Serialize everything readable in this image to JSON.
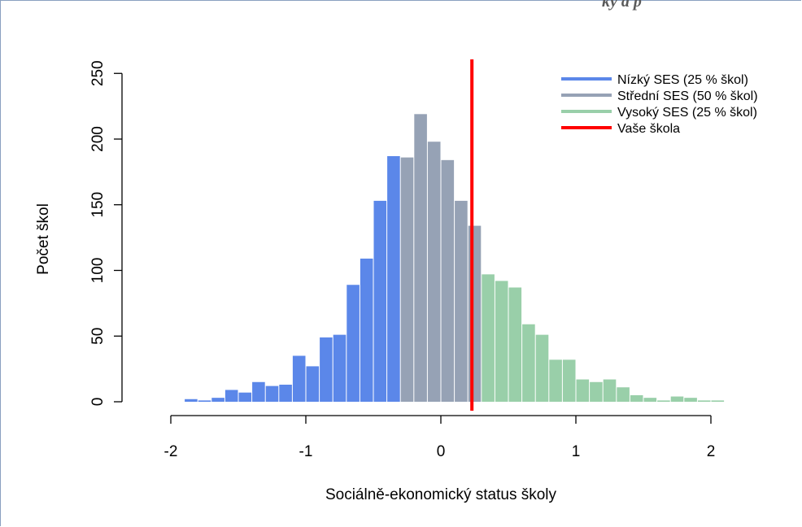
{
  "top_clip_text": "ky a p",
  "chart_data": {
    "type": "bar",
    "title": "",
    "xlabel": "Sociálně-ekonomický status školy",
    "ylabel": "Počet škol",
    "xlim": [
      -2,
      2
    ],
    "ylim": [
      0,
      250
    ],
    "x_ticks": [
      -2,
      -1,
      0,
      1,
      2
    ],
    "x_tick_labels": [
      "-2",
      "-1",
      "0",
      "1",
      "2"
    ],
    "y_ticks": [
      0,
      50,
      100,
      150,
      200,
      250
    ],
    "y_tick_labels": [
      "0",
      "50",
      "100",
      "150",
      "200",
      "250"
    ],
    "bin_width": 0.1,
    "bins": [
      {
        "x0": -1.9,
        "count": 2,
        "group": "low"
      },
      {
        "x0": -1.8,
        "count": 1,
        "group": "low"
      },
      {
        "x0": -1.7,
        "count": 3,
        "group": "low"
      },
      {
        "x0": -1.6,
        "count": 9,
        "group": "low"
      },
      {
        "x0": -1.5,
        "count": 7,
        "group": "low"
      },
      {
        "x0": -1.4,
        "count": 15,
        "group": "low"
      },
      {
        "x0": -1.3,
        "count": 12,
        "group": "low"
      },
      {
        "x0": -1.2,
        "count": 13,
        "group": "low"
      },
      {
        "x0": -1.1,
        "count": 35,
        "group": "low"
      },
      {
        "x0": -1.0,
        "count": 27,
        "group": "low"
      },
      {
        "x0": -0.9,
        "count": 49,
        "group": "low"
      },
      {
        "x0": -0.8,
        "count": 51,
        "group": "low"
      },
      {
        "x0": -0.7,
        "count": 89,
        "group": "low"
      },
      {
        "x0": -0.6,
        "count": 109,
        "group": "low"
      },
      {
        "x0": -0.5,
        "count": 153,
        "group": "low"
      },
      {
        "x0": -0.4,
        "count": 187,
        "group": "low"
      },
      {
        "x0": -0.3,
        "count": 186,
        "group": "mid"
      },
      {
        "x0": -0.2,
        "count": 219,
        "group": "mid"
      },
      {
        "x0": -0.1,
        "count": 198,
        "group": "mid"
      },
      {
        "x0": 0.0,
        "count": 184,
        "group": "mid"
      },
      {
        "x0": 0.1,
        "count": 153,
        "group": "mid"
      },
      {
        "x0": 0.2,
        "count": 134,
        "group": "mid"
      },
      {
        "x0": 0.3,
        "count": 97,
        "group": "high"
      },
      {
        "x0": 0.4,
        "count": 92,
        "group": "high"
      },
      {
        "x0": 0.5,
        "count": 87,
        "group": "high"
      },
      {
        "x0": 0.6,
        "count": 59,
        "group": "high"
      },
      {
        "x0": 0.7,
        "count": 51,
        "group": "high"
      },
      {
        "x0": 0.8,
        "count": 32,
        "group": "high"
      },
      {
        "x0": 0.9,
        "count": 32,
        "group": "high"
      },
      {
        "x0": 1.0,
        "count": 17,
        "group": "high"
      },
      {
        "x0": 1.1,
        "count": 15,
        "group": "high"
      },
      {
        "x0": 1.2,
        "count": 17,
        "group": "high"
      },
      {
        "x0": 1.3,
        "count": 11,
        "group": "high"
      },
      {
        "x0": 1.4,
        "count": 5,
        "group": "high"
      },
      {
        "x0": 1.5,
        "count": 3,
        "group": "high"
      },
      {
        "x0": 1.6,
        "count": 1,
        "group": "high"
      },
      {
        "x0": 1.7,
        "count": 4,
        "group": "high"
      },
      {
        "x0": 1.8,
        "count": 3,
        "group": "high"
      },
      {
        "x0": 1.9,
        "count": 1,
        "group": "high"
      },
      {
        "x0": 2.0,
        "count": 1,
        "group": "high"
      }
    ],
    "groups": {
      "low": {
        "name": "Nízký SES (25 % škol)",
        "color": "#5b87e9"
      },
      "mid": {
        "name": "Střední SES (50 % škol)",
        "color": "#96a2b5"
      },
      "high": {
        "name": "Vysoký SES (25 % škol)",
        "color": "#99cfa9"
      }
    },
    "reference_line": {
      "name": "Vaše škola",
      "x": 0.23,
      "color": "#ff0000"
    },
    "legend": [
      {
        "label": "Nízký SES (25 % škol)",
        "color": "#5b87e9"
      },
      {
        "label": "Střední SES (50 % škol)",
        "color": "#96a2b5"
      },
      {
        "label": "Vysoký SES (25 % škol)",
        "color": "#99cfa9"
      },
      {
        "label": "Vaše škola",
        "color": "#ff0000"
      }
    ],
    "legend_position": "top-right",
    "grid": false
  }
}
